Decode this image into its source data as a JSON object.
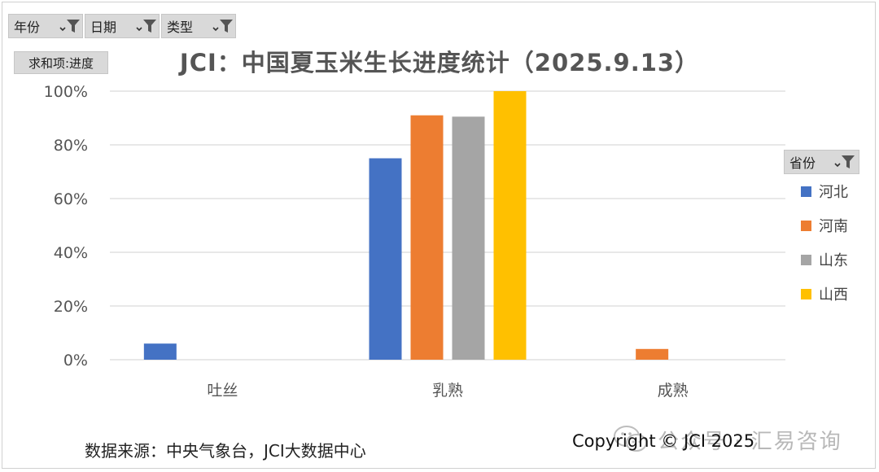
{
  "filters": [
    {
      "label": "年份",
      "icon": "filter-funnel-icon"
    },
    {
      "label": "日期",
      "icon": "filter-funnel-icon"
    },
    {
      "label": "类型",
      "icon": "filter-funnel-icon"
    }
  ],
  "value_field": "求和项:进度",
  "legend_field": "省份",
  "source_note": "数据来源：中央气象台，JCI大数据中心",
  "copyright": "Copyright © JCI 2025",
  "watermark": "公众号 · 汇易咨询",
  "chart_data": {
    "type": "bar",
    "title": "JCI：中国夏玉米生长进度统计（2025.9.13）",
    "categories": [
      "吐丝",
      "乳熟",
      "成熟"
    ],
    "series": [
      {
        "name": "河北",
        "color": "#4472C4",
        "values": [
          6,
          75,
          null
        ]
      },
      {
        "name": "河南",
        "color": "#ED7D31",
        "values": [
          null,
          91,
          4
        ]
      },
      {
        "name": "山东",
        "color": "#A5A5A5",
        "values": [
          null,
          90.5,
          null
        ]
      },
      {
        "name": "山西",
        "color": "#FFC000",
        "values": [
          null,
          100,
          null
        ]
      }
    ],
    "ylim": [
      0,
      100
    ],
    "yticks": [
      "0%",
      "20%",
      "40%",
      "60%",
      "80%",
      "100%"
    ],
    "ytick_values": [
      0,
      20,
      40,
      60,
      80,
      100
    ],
    "grid": true,
    "legend_position": "right"
  }
}
